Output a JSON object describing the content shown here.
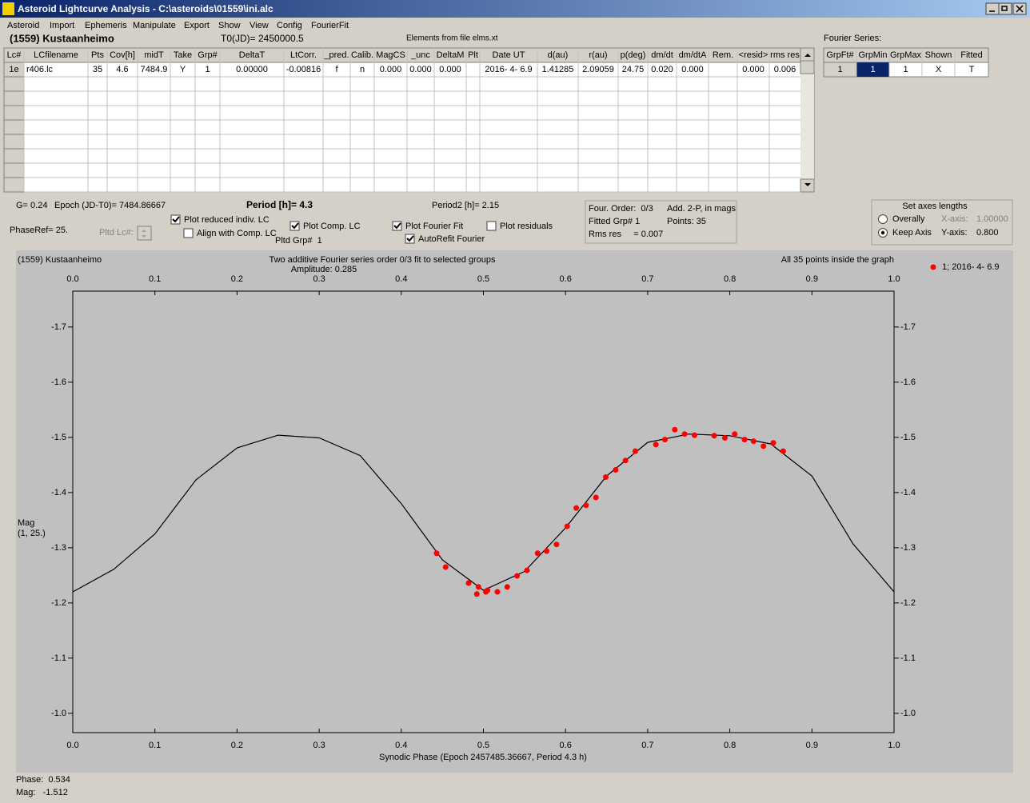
{
  "window": {
    "title": "Asteroid Lightcurve Analysis - C:\\asteroids\\01559\\ini.alc"
  },
  "menu": [
    "Asteroid",
    "Import",
    "Ephemeris",
    "Manipulate",
    "Export",
    "Show",
    "View",
    "Config",
    "FourierFit"
  ],
  "header": {
    "object": "(1559) Kustaanheimo",
    "t0": "T0(JD)= 2450000.5",
    "elements": "Elements from file elms.xt",
    "fourier_label": "Fourier Series:"
  },
  "table": {
    "columns": [
      "Lc#",
      "LCfilename",
      "Pts",
      "Cov[h]",
      "midT",
      "Take",
      "Grp#",
      "DeltaT",
      "LtCorr.",
      "_pred.",
      "Calib.",
      "MagCS",
      "_unc",
      "DeltaM",
      "Plt",
      "Date UT",
      "d(au)",
      "r(au)",
      "p(deg)",
      "dm/dt",
      "dm/dtA",
      "Rem.",
      "<resid>",
      "rms res"
    ],
    "rows": [
      [
        "1e",
        "r406.lc",
        "35",
        "4.6",
        "7484.9",
        "Y",
        "1",
        "0.00000",
        "-0.00816",
        "f",
        "n",
        "0.000",
        "0.000",
        "0.000",
        null,
        "2016- 4- 6.9",
        "1.41285",
        "2.09059",
        "24.75",
        "0.020",
        "0.000",
        null,
        "0.000",
        "0.006"
      ]
    ]
  },
  "fourier_table": {
    "columns": [
      "GrpFt#",
      "GrpMin",
      "GrpMax",
      "Shown",
      "Fitted"
    ],
    "rows": [
      [
        "1",
        "1",
        "1",
        "X",
        "T"
      ]
    ]
  },
  "params": {
    "g": "G= 0.24",
    "epoch": "Epoch (JD-T0)= 7484.86667",
    "period": "Period [h]= 4.3",
    "period2": "Period2 [h]= 2.15",
    "phase_ref": "PhaseRef= 25.",
    "pltd_lc": "Pltd Lc#:",
    "pltd_grp": "Pltd Grp#  1"
  },
  "checkboxes": [
    {
      "label": "Plot reduced indiv. LC",
      "checked": true
    },
    {
      "label": "Align with Comp. LC",
      "checked": false
    },
    {
      "label": "Plot Comp. LC",
      "checked": true
    },
    {
      "label": "Plot Fourier Fit",
      "checked": true
    },
    {
      "label": "Plot residuals",
      "checked": false
    },
    {
      "label": "AutoRefit Fourier",
      "checked": true
    }
  ],
  "fit_info": [
    "Four. Order:  0/3",
    "Add. 2-P, in mags",
    "Fitted Grp# 1",
    "Points: 35",
    "Rms res     = 0.007"
  ],
  "axes_box": {
    "title": "Set axes lengths",
    "options": [
      {
        "label": "Overally",
        "selected": false
      },
      {
        "label": "Keep Axis",
        "selected": true
      }
    ],
    "x_axis": {
      "label": "X-axis:",
      "value": "1.00000"
    },
    "y_axis": {
      "label": "Y-axis:",
      "value": "0.800"
    }
  },
  "chart_data": {
    "type": "scatter",
    "object": "(1559) Kustaanheimo",
    "title": "Two additive Fourier series order 0/3 fit to selected groups",
    "subtitle": "Amplitude: 0.285",
    "note": "All 35 points inside the graph",
    "xlabel": "Synodic Phase (Epoch 2457485.36667, Period 4.3 h)",
    "ylabel": [
      "Mag",
      "(1, 25.)"
    ],
    "xlim": [
      0,
      1
    ],
    "ylim": [
      -0.965,
      -1.765
    ],
    "xticks": [
      {
        "value": 0,
        "label": "0.0"
      },
      0.1,
      0.2,
      0.3,
      0.4,
      0.5,
      0.6,
      0.7,
      0.8,
      0.9,
      {
        "value": 1,
        "label": "1.0"
      }
    ],
    "yticks": [
      -1.7,
      -1.6,
      -1.5,
      -1.4,
      -1.3,
      -1.2,
      -1.1,
      {
        "value": -1,
        "label": "-1.0"
      }
    ],
    "legend": "upper right",
    "series": [
      {
        "name": "1; 2016- 4- 6.9",
        "color": "#ff0000",
        "x": [
          0.443,
          0.454,
          0.482,
          0.492,
          0.494,
          0.503,
          0.505,
          0.517,
          0.529,
          0.541,
          0.553,
          0.566,
          0.577,
          0.589,
          0.602,
          0.613,
          0.625,
          0.637,
          0.649,
          0.661,
          0.673,
          0.685,
          0.71,
          0.721,
          0.733,
          0.745,
          0.757,
          0.781,
          0.794,
          0.806,
          0.818,
          0.829,
          0.841,
          0.853,
          0.865
        ],
        "values": [
          -1.29,
          -1.265,
          -1.236,
          -1.216,
          -1.229,
          -1.22,
          -1.223,
          -1.22,
          -1.229,
          -1.249,
          -1.259,
          -1.29,
          -1.294,
          -1.306,
          -1.339,
          -1.372,
          -1.377,
          -1.391,
          -1.428,
          -1.441,
          -1.458,
          -1.475,
          -1.487,
          -1.496,
          -1.514,
          -1.506,
          -1.504,
          -1.503,
          -1.499,
          -1.506,
          -1.496,
          -1.493,
          -1.484,
          -1.49,
          -1.475
        ]
      }
    ],
    "fit": {
      "color": "#000000",
      "x": [
        0,
        0.05,
        0.1,
        0.15,
        0.2,
        0.25,
        0.3,
        0.35,
        0.4,
        0.45,
        0.5,
        0.55,
        0.6,
        0.65,
        0.7,
        0.75,
        0.8,
        0.85,
        0.9,
        0.95,
        1
      ],
      "values": [
        -1.22,
        -1.261,
        -1.325,
        -1.423,
        -1.481,
        -1.504,
        -1.499,
        -1.467,
        -1.38,
        -1.278,
        -1.223,
        -1.257,
        -1.336,
        -1.43,
        -1.491,
        -1.506,
        -1.503,
        -1.488,
        -1.43,
        -1.307,
        -1.22
      ]
    }
  },
  "status": {
    "phase": "Phase:  0.534",
    "mag": "Mag:   -1.512"
  }
}
